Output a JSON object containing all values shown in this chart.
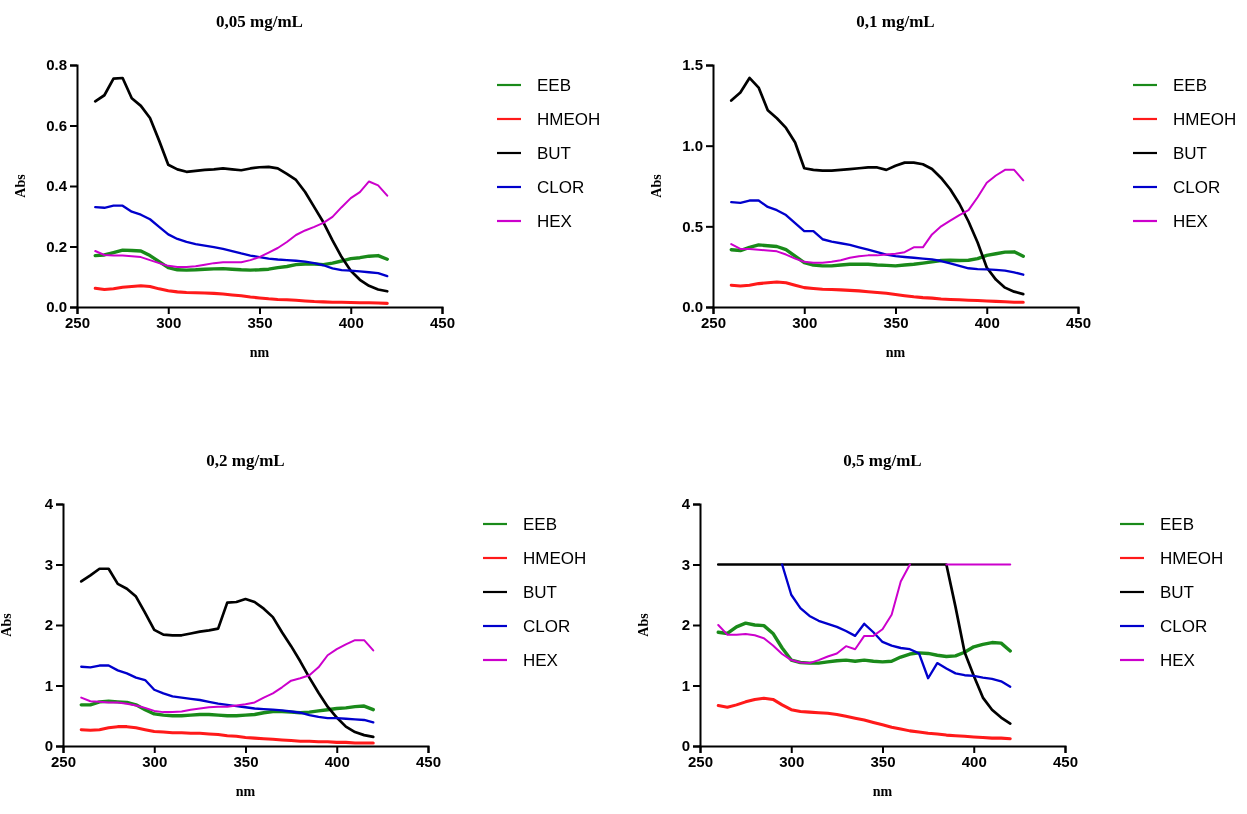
{
  "chart_data": [
    {
      "type": "line",
      "title": "0,05 mg/mL",
      "xlabel": "nm",
      "ylabel": "Abs",
      "legend": "right",
      "grid": false,
      "marker": "none",
      "line_style": "solid",
      "xlim": [
        250,
        450
      ],
      "xticks": [
        250,
        300,
        350,
        400,
        450
      ],
      "ylim": [
        0,
        0.8
      ],
      "yticks": [
        {
          "value": 0,
          "label": "0.0"
        },
        {
          "value": 0.2,
          "label": "0.2"
        },
        {
          "value": 0.4,
          "label": "0.4"
        },
        {
          "value": 0.6,
          "label": "0.6"
        },
        {
          "value": 0.8,
          "label": "0.8"
        }
      ],
      "x": [
        260,
        265,
        270,
        275,
        280,
        285,
        290,
        295,
        300,
        305,
        310,
        315,
        320,
        325,
        330,
        335,
        340,
        345,
        350,
        355,
        360,
        365,
        370,
        375,
        380,
        385,
        390,
        395,
        400,
        405,
        410,
        415,
        420
      ],
      "series": [
        {
          "name": "EEB",
          "color": "#1a8a1a",
          "values": [
            0.17,
            0.172,
            0.18,
            0.188,
            0.187,
            0.185,
            0.17,
            0.15,
            0.13,
            0.123,
            0.122,
            0.123,
            0.125,
            0.126,
            0.127,
            0.125,
            0.123,
            0.122,
            0.123,
            0.125,
            0.13,
            0.134,
            0.14,
            0.142,
            0.142,
            0.14,
            0.145,
            0.152,
            0.16,
            0.163,
            0.168,
            0.17,
            0.158
          ]
        },
        {
          "name": "HMEOH",
          "color": "#ff1a1a",
          "values": [
            0.062,
            0.058,
            0.06,
            0.065,
            0.068,
            0.07,
            0.068,
            0.06,
            0.054,
            0.05,
            0.048,
            0.047,
            0.046,
            0.045,
            0.043,
            0.04,
            0.037,
            0.033,
            0.03,
            0.027,
            0.025,
            0.024,
            0.022,
            0.02,
            0.018,
            0.017,
            0.016,
            0.016,
            0.015,
            0.014,
            0.014,
            0.013,
            0.012
          ]
        },
        {
          "name": "BUT",
          "color": "#000000",
          "values": [
            0.68,
            0.7,
            0.755,
            0.757,
            0.69,
            0.665,
            0.625,
            0.55,
            0.47,
            0.455,
            0.447,
            0.45,
            0.453,
            0.455,
            0.458,
            0.455,
            0.452,
            0.458,
            0.462,
            0.463,
            0.458,
            0.44,
            0.42,
            0.38,
            0.33,
            0.28,
            0.22,
            0.165,
            0.12,
            0.09,
            0.07,
            0.058,
            0.052
          ]
        },
        {
          "name": "CLOR",
          "color": "#0000cc",
          "values": [
            0.33,
            0.328,
            0.335,
            0.335,
            0.315,
            0.305,
            0.29,
            0.265,
            0.24,
            0.225,
            0.215,
            0.208,
            0.203,
            0.198,
            0.192,
            0.185,
            0.177,
            0.17,
            0.165,
            0.16,
            0.157,
            0.155,
            0.153,
            0.15,
            0.145,
            0.138,
            0.128,
            0.122,
            0.12,
            0.118,
            0.115,
            0.112,
            0.102
          ]
        },
        {
          "name": "HEX",
          "color": "#cc00cc",
          "values": [
            0.185,
            0.172,
            0.17,
            0.17,
            0.168,
            0.165,
            0.155,
            0.145,
            0.136,
            0.132,
            0.132,
            0.135,
            0.14,
            0.145,
            0.148,
            0.148,
            0.148,
            0.155,
            0.165,
            0.18,
            0.195,
            0.215,
            0.238,
            0.253,
            0.265,
            0.278,
            0.298,
            0.33,
            0.36,
            0.38,
            0.415,
            0.402,
            0.368
          ]
        }
      ]
    },
    {
      "type": "line",
      "title": "0,1 mg/mL",
      "xlabel": "nm",
      "ylabel": "Abs",
      "legend": "right",
      "grid": false,
      "marker": "none",
      "line_style": "solid",
      "xlim": [
        250,
        450
      ],
      "xticks": [
        250,
        300,
        350,
        400,
        450
      ],
      "ylim": [
        0,
        1.5
      ],
      "yticks": [
        {
          "value": 0,
          "label": "0.0"
        },
        {
          "value": 0.5,
          "label": "0.5"
        },
        {
          "value": 1,
          "label": "1.0"
        },
        {
          "value": 1.5,
          "label": "1.5"
        }
      ],
      "x": [
        260,
        265,
        270,
        275,
        280,
        285,
        290,
        295,
        300,
        305,
        310,
        315,
        320,
        325,
        330,
        335,
        340,
        345,
        350,
        355,
        360,
        365,
        370,
        375,
        380,
        385,
        390,
        395,
        400,
        405,
        410,
        415,
        420
      ],
      "series": [
        {
          "name": "EEB",
          "color": "#1a8a1a",
          "values": [
            0.355,
            0.35,
            0.37,
            0.385,
            0.38,
            0.375,
            0.355,
            0.315,
            0.275,
            0.26,
            0.255,
            0.255,
            0.26,
            0.265,
            0.265,
            0.265,
            0.26,
            0.258,
            0.255,
            0.26,
            0.265,
            0.272,
            0.28,
            0.288,
            0.29,
            0.288,
            0.29,
            0.3,
            0.32,
            0.33,
            0.34,
            0.342,
            0.315
          ]
        },
        {
          "name": "HMEOH",
          "color": "#ff1a1a",
          "values": [
            0.135,
            0.13,
            0.135,
            0.145,
            0.15,
            0.155,
            0.15,
            0.135,
            0.12,
            0.115,
            0.11,
            0.108,
            0.106,
            0.103,
            0.1,
            0.095,
            0.09,
            0.085,
            0.078,
            0.07,
            0.063,
            0.058,
            0.055,
            0.05,
            0.047,
            0.045,
            0.042,
            0.04,
            0.037,
            0.035,
            0.033,
            0.03,
            0.03
          ]
        },
        {
          "name": "BUT",
          "color": "#000000",
          "values": [
            1.28,
            1.33,
            1.42,
            1.36,
            1.22,
            1.17,
            1.11,
            1.02,
            0.86,
            0.85,
            0.845,
            0.845,
            0.85,
            0.855,
            0.86,
            0.865,
            0.865,
            0.85,
            0.875,
            0.895,
            0.895,
            0.885,
            0.855,
            0.8,
            0.73,
            0.64,
            0.53,
            0.4,
            0.245,
            0.17,
            0.12,
            0.095,
            0.08
          ]
        },
        {
          "name": "CLOR",
          "color": "#0000cc",
          "values": [
            0.65,
            0.645,
            0.66,
            0.66,
            0.62,
            0.6,
            0.57,
            0.52,
            0.47,
            0.47,
            0.42,
            0.405,
            0.395,
            0.385,
            0.37,
            0.355,
            0.34,
            0.325,
            0.315,
            0.31,
            0.305,
            0.3,
            0.295,
            0.285,
            0.27,
            0.255,
            0.24,
            0.235,
            0.233,
            0.23,
            0.225,
            0.215,
            0.2
          ]
        },
        {
          "name": "HEX",
          "color": "#cc00cc",
          "values": [
            0.39,
            0.36,
            0.36,
            0.355,
            0.35,
            0.345,
            0.325,
            0.3,
            0.28,
            0.275,
            0.275,
            0.28,
            0.29,
            0.305,
            0.315,
            0.32,
            0.32,
            0.325,
            0.33,
            0.34,
            0.37,
            0.37,
            0.45,
            0.5,
            0.535,
            0.57,
            0.6,
            0.68,
            0.77,
            0.815,
            0.85,
            0.85,
            0.785
          ]
        }
      ]
    },
    {
      "type": "line",
      "title": "0,2 mg/mL",
      "xlabel": "nm",
      "ylabel": "Abs",
      "legend": "right",
      "grid": false,
      "marker": "none",
      "line_style": "solid",
      "xlim": [
        250,
        450
      ],
      "xticks": [
        250,
        300,
        350,
        400,
        450
      ],
      "ylim": [
        0,
        4
      ],
      "yticks": [
        0,
        1,
        2,
        3,
        4
      ],
      "x": [
        260,
        265,
        270,
        275,
        280,
        285,
        290,
        295,
        300,
        305,
        310,
        315,
        320,
        325,
        330,
        335,
        340,
        345,
        350,
        355,
        360,
        365,
        370,
        375,
        380,
        385,
        390,
        395,
        400,
        405,
        410,
        415,
        420
      ],
      "series": [
        {
          "name": "EEB",
          "color": "#1a8a1a",
          "values": [
            0.68,
            0.68,
            0.73,
            0.74,
            0.73,
            0.72,
            0.68,
            0.6,
            0.53,
            0.51,
            0.5,
            0.5,
            0.51,
            0.52,
            0.52,
            0.51,
            0.5,
            0.5,
            0.51,
            0.52,
            0.55,
            0.57,
            0.57,
            0.56,
            0.55,
            0.56,
            0.58,
            0.6,
            0.62,
            0.63,
            0.65,
            0.66,
            0.6
          ]
        },
        {
          "name": "HMEOH",
          "color": "#ff1a1a",
          "values": [
            0.27,
            0.26,
            0.27,
            0.3,
            0.32,
            0.32,
            0.3,
            0.27,
            0.24,
            0.23,
            0.22,
            0.22,
            0.21,
            0.21,
            0.2,
            0.19,
            0.17,
            0.16,
            0.14,
            0.13,
            0.12,
            0.11,
            0.1,
            0.09,
            0.08,
            0.08,
            0.07,
            0.07,
            0.06,
            0.06,
            0.05,
            0.05,
            0.05
          ]
        },
        {
          "name": "BUT",
          "color": "#000000",
          "values": [
            2.72,
            2.82,
            2.93,
            2.93,
            2.68,
            2.6,
            2.47,
            2.2,
            1.92,
            1.84,
            1.83,
            1.83,
            1.86,
            1.89,
            1.91,
            1.94,
            2.37,
            2.38,
            2.43,
            2.38,
            2.27,
            2.13,
            1.88,
            1.65,
            1.4,
            1.13,
            0.88,
            0.65,
            0.47,
            0.32,
            0.23,
            0.18,
            0.15
          ]
        },
        {
          "name": "CLOR",
          "color": "#0000cc",
          "values": [
            1.31,
            1.3,
            1.33,
            1.33,
            1.25,
            1.2,
            1.13,
            1.09,
            0.93,
            0.87,
            0.82,
            0.8,
            0.78,
            0.76,
            0.73,
            0.7,
            0.68,
            0.66,
            0.64,
            0.62,
            0.61,
            0.6,
            0.59,
            0.57,
            0.55,
            0.51,
            0.48,
            0.46,
            0.46,
            0.45,
            0.44,
            0.43,
            0.39
          ]
        },
        {
          "name": "HEX",
          "color": "#cc00cc",
          "values": [
            0.8,
            0.74,
            0.73,
            0.72,
            0.72,
            0.7,
            0.67,
            0.63,
            0.58,
            0.56,
            0.56,
            0.57,
            0.6,
            0.62,
            0.64,
            0.65,
            0.65,
            0.67,
            0.69,
            0.72,
            0.8,
            0.87,
            0.97,
            1.08,
            1.12,
            1.17,
            1.3,
            1.5,
            1.6,
            1.68,
            1.75,
            1.75,
            1.58
          ]
        }
      ]
    },
    {
      "type": "line",
      "title": "0,5 mg/mL",
      "xlabel": "nm",
      "ylabel": "Abs",
      "legend": "right",
      "grid": false,
      "marker": "none",
      "line_style": "solid",
      "xlim": [
        250,
        450
      ],
      "xticks": [
        250,
        300,
        350,
        400,
        450
      ],
      "ylim": [
        0,
        4
      ],
      "yticks": [
        0,
        1,
        2,
        3,
        4
      ],
      "x": [
        260,
        265,
        270,
        275,
        280,
        285,
        290,
        295,
        300,
        305,
        310,
        315,
        320,
        325,
        330,
        335,
        340,
        345,
        350,
        355,
        360,
        365,
        370,
        375,
        380,
        385,
        390,
        395,
        400,
        405,
        410,
        415,
        420
      ],
      "series": [
        {
          "name": "EEB",
          "color": "#1a8a1a",
          "values": [
            1.88,
            1.86,
            1.97,
            2.03,
            2.0,
            1.99,
            1.86,
            1.62,
            1.42,
            1.38,
            1.37,
            1.37,
            1.39,
            1.41,
            1.42,
            1.4,
            1.42,
            1.4,
            1.39,
            1.4,
            1.47,
            1.52,
            1.54,
            1.53,
            1.5,
            1.48,
            1.49,
            1.55,
            1.64,
            1.68,
            1.71,
            1.7,
            1.57
          ]
        },
        {
          "name": "HMEOH",
          "color": "#ff1a1a",
          "values": [
            0.67,
            0.64,
            0.68,
            0.73,
            0.77,
            0.79,
            0.77,
            0.68,
            0.6,
            0.57,
            0.56,
            0.55,
            0.54,
            0.52,
            0.49,
            0.46,
            0.43,
            0.39,
            0.35,
            0.31,
            0.28,
            0.25,
            0.23,
            0.21,
            0.2,
            0.18,
            0.17,
            0.16,
            0.15,
            0.14,
            0.13,
            0.13,
            0.12
          ]
        },
        {
          "name": "BUT",
          "color": "#000000",
          "values": [
            3,
            3,
            3,
            3,
            3,
            3,
            3,
            3,
            3,
            3,
            3,
            3,
            3,
            3,
            3,
            3,
            3,
            3,
            3,
            3,
            3,
            3,
            3,
            3,
            3,
            3,
            2.3,
            1.55,
            1.16,
            0.8,
            0.6,
            0.47,
            0.37
          ]
        },
        {
          "name": "CLOR",
          "color": "#0000cc",
          "values": [
            null,
            null,
            null,
            null,
            null,
            null,
            null,
            3,
            2.5,
            2.28,
            2.15,
            2.07,
            2.02,
            1.97,
            1.9,
            1.82,
            2.02,
            1.88,
            1.72,
            1.66,
            1.62,
            1.6,
            1.53,
            1.12,
            1.37,
            1.28,
            1.2,
            1.17,
            1.16,
            1.13,
            1.11,
            1.07,
            0.98
          ]
        },
        {
          "name": "HEX",
          "color": "#cc00cc",
          "values": [
            2.0,
            1.84,
            1.84,
            1.85,
            1.83,
            1.78,
            1.66,
            1.52,
            1.42,
            1.38,
            1.37,
            1.42,
            1.48,
            1.53,
            1.65,
            1.6,
            1.82,
            1.82,
            1.93,
            2.17,
            2.72,
            3,
            null,
            null,
            null,
            3,
            3,
            3,
            3,
            3,
            3,
            3,
            3
          ]
        }
      ]
    }
  ]
}
